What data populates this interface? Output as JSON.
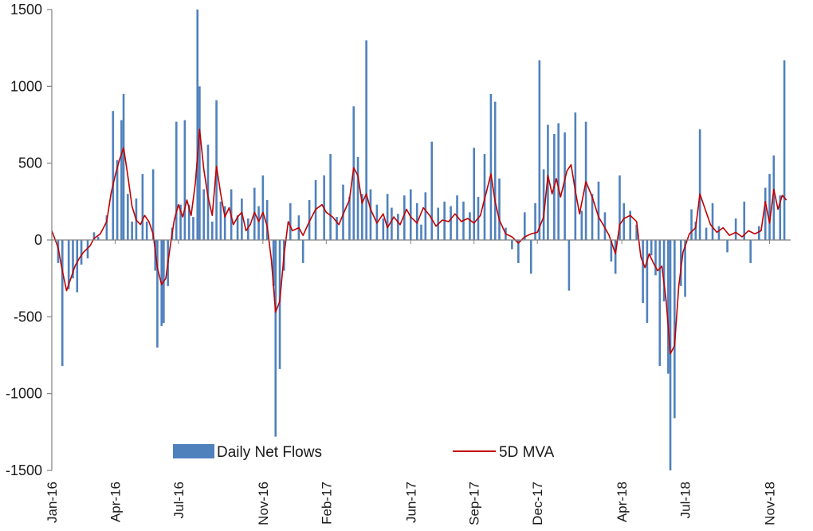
{
  "chart_data": {
    "type": "bar",
    "title": "",
    "xlabel": "",
    "ylabel": "",
    "ylim": [
      -1500,
      1500
    ],
    "yticks": [
      1500,
      1000,
      500,
      0,
      -500,
      -1000,
      -1500
    ],
    "ytick_labels": [
      "1500",
      "1000",
      "500",
      "0",
      "-500",
      "-1000",
      "-1500"
    ],
    "x_range_months": [
      0,
      35
    ],
    "x_tick_labels": [
      {
        "label": "Jan-16",
        "month": 0
      },
      {
        "label": "Apr-16",
        "month": 3
      },
      {
        "label": "Jul-16",
        "month": 6
      },
      {
        "label": "Nov-16",
        "month": 10
      },
      {
        "label": "Feb-17",
        "month": 13
      },
      {
        "label": "Jun-17",
        "month": 17
      },
      {
        "label": "Sep-17",
        "month": 20
      },
      {
        "label": "Dec-17",
        "month": 23
      },
      {
        "label": "Apr-18",
        "month": 27
      },
      {
        "label": "Jul-18",
        "month": 30
      },
      {
        "label": "Nov-18",
        "month": 34
      }
    ],
    "legend_position": "bottom",
    "series": [
      {
        "name": "Daily Net Flows",
        "kind": "bar",
        "color": "#4f81bd",
        "points": [
          [
            0.3,
            -150
          ],
          [
            0.5,
            -300
          ],
          [
            0.5,
            -820
          ],
          [
            0.8,
            -320
          ],
          [
            1.0,
            -250
          ],
          [
            1.2,
            -340
          ],
          [
            1.4,
            -160
          ],
          [
            1.7,
            -120
          ],
          [
            2.0,
            50
          ],
          [
            2.2,
            20
          ],
          [
            2.6,
            160
          ],
          [
            2.9,
            840
          ],
          [
            3.1,
            520
          ],
          [
            3.3,
            780
          ],
          [
            3.4,
            950
          ],
          [
            3.6,
            300
          ],
          [
            3.8,
            120
          ],
          [
            4.0,
            270
          ],
          [
            4.3,
            430
          ],
          [
            4.5,
            120
          ],
          [
            4.8,
            460
          ],
          [
            4.9,
            -200
          ],
          [
            5.0,
            -700
          ],
          [
            5.2,
            -560
          ],
          [
            5.3,
            -540
          ],
          [
            5.5,
            -300
          ],
          [
            5.7,
            80
          ],
          [
            5.9,
            770
          ],
          [
            6.1,
            230
          ],
          [
            6.3,
            780
          ],
          [
            6.5,
            230
          ],
          [
            6.7,
            150
          ],
          [
            6.9,
            1500
          ],
          [
            7.0,
            1000
          ],
          [
            7.2,
            330
          ],
          [
            7.4,
            620
          ],
          [
            7.6,
            120
          ],
          [
            7.8,
            910
          ],
          [
            8.0,
            250
          ],
          [
            8.2,
            220
          ],
          [
            8.5,
            330
          ],
          [
            8.8,
            160
          ],
          [
            9.0,
            270
          ],
          [
            9.3,
            140
          ],
          [
            9.6,
            340
          ],
          [
            9.8,
            220
          ],
          [
            10.0,
            420
          ],
          [
            10.2,
            260
          ],
          [
            10.5,
            -300
          ],
          [
            10.6,
            -1280
          ],
          [
            10.8,
            -840
          ],
          [
            11.0,
            -200
          ],
          [
            11.3,
            240
          ],
          [
            11.7,
            160
          ],
          [
            11.9,
            -150
          ],
          [
            12.2,
            260
          ],
          [
            12.5,
            390
          ],
          [
            12.9,
            420
          ],
          [
            13.2,
            560
          ],
          [
            13.5,
            150
          ],
          [
            13.8,
            360
          ],
          [
            14.1,
            280
          ],
          [
            14.3,
            870
          ],
          [
            14.5,
            540
          ],
          [
            14.7,
            300
          ],
          [
            14.9,
            1300
          ],
          [
            15.1,
            330
          ],
          [
            15.4,
            230
          ],
          [
            15.7,
            140
          ],
          [
            15.9,
            300
          ],
          [
            16.1,
            210
          ],
          [
            16.4,
            170
          ],
          [
            16.7,
            290
          ],
          [
            17.0,
            330
          ],
          [
            17.3,
            240
          ],
          [
            17.5,
            100
          ],
          [
            17.7,
            310
          ],
          [
            18.0,
            640
          ],
          [
            18.3,
            210
          ],
          [
            18.6,
            250
          ],
          [
            18.9,
            220
          ],
          [
            19.2,
            290
          ],
          [
            19.5,
            250
          ],
          [
            19.8,
            180
          ],
          [
            20.0,
            600
          ],
          [
            20.2,
            280
          ],
          [
            20.5,
            560
          ],
          [
            20.8,
            950
          ],
          [
            21.0,
            900
          ],
          [
            21.2,
            400
          ],
          [
            21.5,
            80
          ],
          [
            21.8,
            -60
          ],
          [
            22.1,
            -150
          ],
          [
            22.4,
            180
          ],
          [
            22.7,
            -220
          ],
          [
            22.9,
            240
          ],
          [
            23.1,
            1170
          ],
          [
            23.3,
            460
          ],
          [
            23.5,
            750
          ],
          [
            23.8,
            690
          ],
          [
            24.0,
            760
          ],
          [
            24.3,
            700
          ],
          [
            24.5,
            -330
          ],
          [
            24.8,
            830
          ],
          [
            25.1,
            190
          ],
          [
            25.3,
            770
          ],
          [
            25.6,
            300
          ],
          [
            25.9,
            380
          ],
          [
            26.2,
            180
          ],
          [
            26.5,
            -140
          ],
          [
            26.7,
            -220
          ],
          [
            26.9,
            420
          ],
          [
            27.1,
            240
          ],
          [
            27.4,
            190
          ],
          [
            27.7,
            100
          ],
          [
            28.0,
            -410
          ],
          [
            28.2,
            -540
          ],
          [
            28.4,
            -100
          ],
          [
            28.6,
            -230
          ],
          [
            28.8,
            -820
          ],
          [
            29.0,
            -400
          ],
          [
            29.2,
            -870
          ],
          [
            29.3,
            -1500
          ],
          [
            29.5,
            -1160
          ],
          [
            29.8,
            -300
          ],
          [
            30.0,
            -370
          ],
          [
            30.3,
            200
          ],
          [
            30.5,
            120
          ],
          [
            30.7,
            720
          ],
          [
            31.0,
            80
          ],
          [
            31.3,
            240
          ],
          [
            31.6,
            90
          ],
          [
            32.0,
            -80
          ],
          [
            32.4,
            140
          ],
          [
            32.8,
            250
          ],
          [
            33.1,
            -150
          ],
          [
            33.5,
            90
          ],
          [
            33.8,
            340
          ],
          [
            34.0,
            430
          ],
          [
            34.2,
            550
          ],
          [
            34.5,
            290
          ],
          [
            34.7,
            1170
          ]
        ]
      },
      {
        "name": "5D MVA",
        "kind": "line",
        "color": "#c00000",
        "points": [
          [
            0.0,
            60
          ],
          [
            0.3,
            -50
          ],
          [
            0.5,
            -200
          ],
          [
            0.7,
            -330
          ],
          [
            0.9,
            -250
          ],
          [
            1.1,
            -170
          ],
          [
            1.3,
            -120
          ],
          [
            1.5,
            -80
          ],
          [
            1.8,
            -40
          ],
          [
            2.0,
            10
          ],
          [
            2.3,
            40
          ],
          [
            2.6,
            120
          ],
          [
            2.8,
            300
          ],
          [
            3.0,
            420
          ],
          [
            3.2,
            520
          ],
          [
            3.4,
            600
          ],
          [
            3.6,
            420
          ],
          [
            3.8,
            220
          ],
          [
            4.0,
            130
          ],
          [
            4.2,
            100
          ],
          [
            4.4,
            160
          ],
          [
            4.6,
            120
          ],
          [
            4.8,
            40
          ],
          [
            5.0,
            -180
          ],
          [
            5.2,
            -290
          ],
          [
            5.4,
            -250
          ],
          [
            5.6,
            -50
          ],
          [
            5.8,
            130
          ],
          [
            6.0,
            230
          ],
          [
            6.2,
            150
          ],
          [
            6.4,
            260
          ],
          [
            6.6,
            160
          ],
          [
            6.8,
            370
          ],
          [
            7.0,
            720
          ],
          [
            7.2,
            460
          ],
          [
            7.4,
            280
          ],
          [
            7.6,
            160
          ],
          [
            7.8,
            480
          ],
          [
            8.0,
            300
          ],
          [
            8.2,
            150
          ],
          [
            8.4,
            210
          ],
          [
            8.6,
            100
          ],
          [
            8.8,
            150
          ],
          [
            9.0,
            180
          ],
          [
            9.2,
            60
          ],
          [
            9.4,
            100
          ],
          [
            9.6,
            180
          ],
          [
            9.8,
            120
          ],
          [
            10.0,
            180
          ],
          [
            10.2,
            90
          ],
          [
            10.4,
            -130
          ],
          [
            10.6,
            -470
          ],
          [
            10.8,
            -400
          ],
          [
            11.0,
            -100
          ],
          [
            11.2,
            120
          ],
          [
            11.4,
            60
          ],
          [
            11.7,
            80
          ],
          [
            11.9,
            30
          ],
          [
            12.2,
            120
          ],
          [
            12.5,
            200
          ],
          [
            12.8,
            230
          ],
          [
            13.0,
            180
          ],
          [
            13.3,
            150
          ],
          [
            13.6,
            100
          ],
          [
            13.9,
            200
          ],
          [
            14.1,
            260
          ],
          [
            14.3,
            470
          ],
          [
            14.5,
            420
          ],
          [
            14.7,
            240
          ],
          [
            14.9,
            300
          ],
          [
            15.1,
            200
          ],
          [
            15.4,
            110
          ],
          [
            15.7,
            170
          ],
          [
            15.9,
            80
          ],
          [
            16.2,
            150
          ],
          [
            16.5,
            100
          ],
          [
            16.8,
            200
          ],
          [
            17.0,
            150
          ],
          [
            17.3,
            110
          ],
          [
            17.6,
            210
          ],
          [
            17.9,
            160
          ],
          [
            18.2,
            90
          ],
          [
            18.5,
            130
          ],
          [
            18.8,
            120
          ],
          [
            19.1,
            170
          ],
          [
            19.4,
            120
          ],
          [
            19.7,
            140
          ],
          [
            20.0,
            110
          ],
          [
            20.3,
            160
          ],
          [
            20.6,
            320
          ],
          [
            20.8,
            430
          ],
          [
            21.0,
            250
          ],
          [
            21.2,
            130
          ],
          [
            21.5,
            40
          ],
          [
            21.8,
            20
          ],
          [
            22.1,
            -20
          ],
          [
            22.4,
            20
          ],
          [
            22.7,
            40
          ],
          [
            23.0,
            50
          ],
          [
            23.3,
            150
          ],
          [
            23.5,
            420
          ],
          [
            23.7,
            300
          ],
          [
            23.9,
            400
          ],
          [
            24.1,
            280
          ],
          [
            24.4,
            450
          ],
          [
            24.6,
            490
          ],
          [
            24.8,
            320
          ],
          [
            25.0,
            170
          ],
          [
            25.3,
            380
          ],
          [
            25.6,
            280
          ],
          [
            25.9,
            150
          ],
          [
            26.2,
            80
          ],
          [
            26.4,
            30
          ],
          [
            26.7,
            -90
          ],
          [
            26.9,
            100
          ],
          [
            27.1,
            140
          ],
          [
            27.4,
            160
          ],
          [
            27.7,
            120
          ],
          [
            27.9,
            -110
          ],
          [
            28.1,
            -180
          ],
          [
            28.3,
            -90
          ],
          [
            28.5,
            -150
          ],
          [
            28.7,
            -200
          ],
          [
            28.9,
            -170
          ],
          [
            29.1,
            -390
          ],
          [
            29.3,
            -740
          ],
          [
            29.5,
            -690
          ],
          [
            29.7,
            -300
          ],
          [
            29.9,
            -80
          ],
          [
            30.2,
            40
          ],
          [
            30.5,
            80
          ],
          [
            30.7,
            300
          ],
          [
            30.9,
            220
          ],
          [
            31.2,
            100
          ],
          [
            31.5,
            50
          ],
          [
            31.8,
            80
          ],
          [
            32.1,
            30
          ],
          [
            32.4,
            50
          ],
          [
            32.7,
            20
          ],
          [
            33.0,
            60
          ],
          [
            33.3,
            40
          ],
          [
            33.6,
            60
          ],
          [
            33.8,
            250
          ],
          [
            34.0,
            110
          ],
          [
            34.2,
            330
          ],
          [
            34.4,
            200
          ],
          [
            34.6,
            290
          ],
          [
            34.8,
            260
          ]
        ]
      }
    ]
  }
}
